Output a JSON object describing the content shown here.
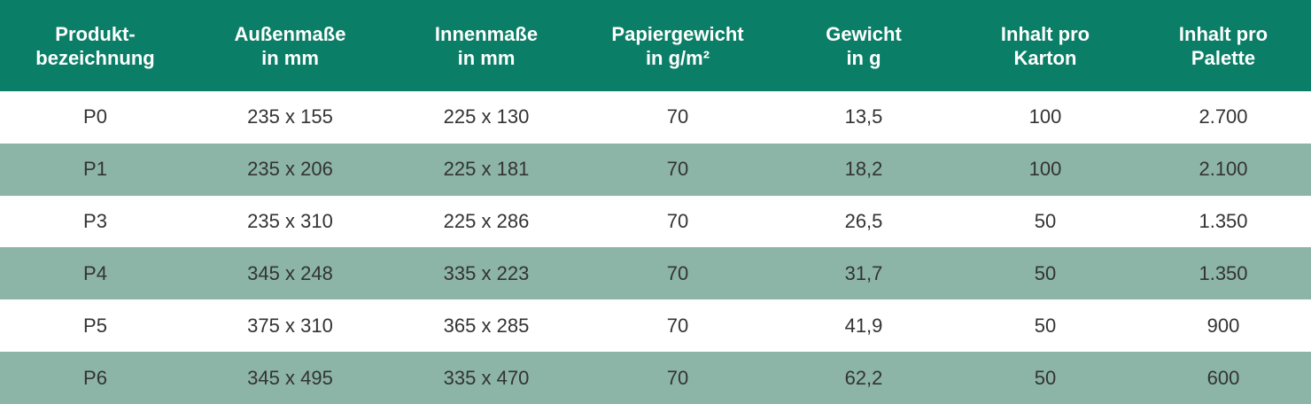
{
  "table": {
    "header": [
      [
        "Produkt-",
        "bezeichnung"
      ],
      [
        "Außenmaße",
        "in mm"
      ],
      [
        "Innenmaße",
        "in mm"
      ],
      [
        "Papiergewicht",
        "in g/m²"
      ],
      [
        "Gewicht",
        "in g"
      ],
      [
        "Inhalt pro",
        "Karton"
      ],
      [
        "Inhalt pro",
        "Palette"
      ]
    ],
    "rows": [
      [
        "P0",
        "235 x 155",
        "225 x 130",
        "70",
        "13,5",
        "100",
        "2.700"
      ],
      [
        "P1",
        "235 x 206",
        "225 x 181",
        "70",
        "18,2",
        "100",
        "2.100"
      ],
      [
        "P3",
        "235 x 310",
        "225 x 286",
        "70",
        "26,5",
        "50",
        "1.350"
      ],
      [
        "P4",
        "345 x 248",
        "335 x 223",
        "70",
        "31,7",
        "50",
        "1.350"
      ],
      [
        "P5",
        "375 x 310",
        "365 x 285",
        "70",
        "41,9",
        "50",
        "900"
      ],
      [
        "P6",
        "345 x 495",
        "335 x 470",
        "70",
        "62,2",
        "50",
        "600"
      ]
    ]
  }
}
